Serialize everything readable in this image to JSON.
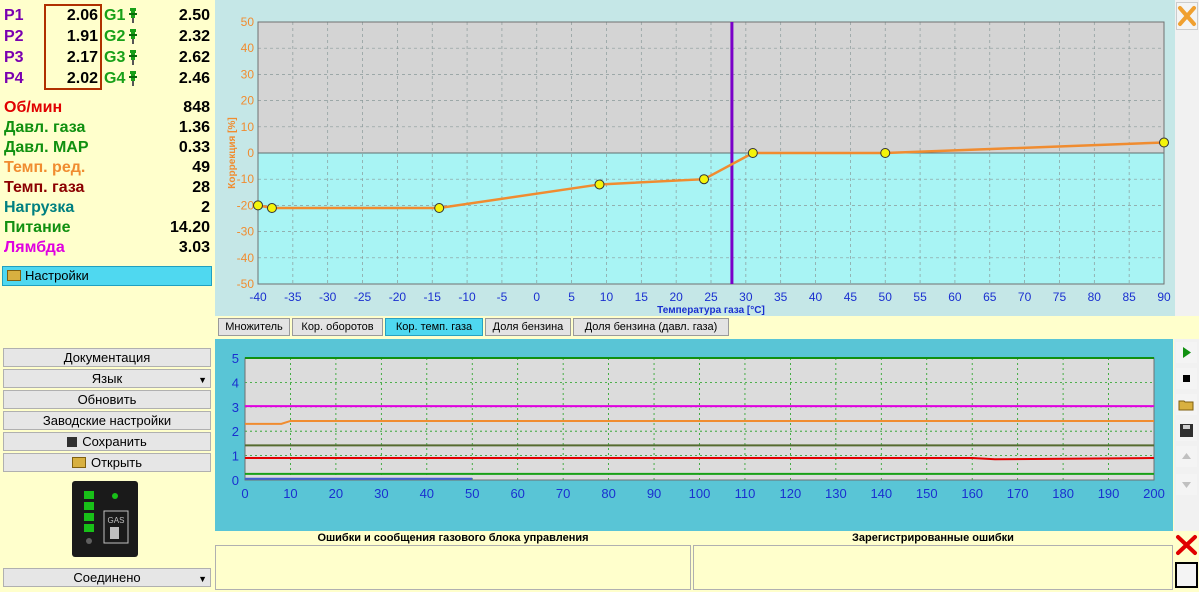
{
  "injectors": [
    {
      "p_label": "P1",
      "p_value": "2.06",
      "g_label": "G1",
      "g_value": "2.50"
    },
    {
      "p_label": "P2",
      "p_value": "1.91",
      "g_label": "G2",
      "g_value": "2.32"
    },
    {
      "p_label": "P3",
      "p_value": "2.17",
      "g_label": "G3",
      "g_value": "2.62"
    },
    {
      "p_label": "P4",
      "p_value": "2.02",
      "g_label": "G4",
      "g_value": "2.46"
    }
  ],
  "stats": [
    {
      "label": "Об/мин",
      "value": "848",
      "color": "#e00000"
    },
    {
      "label": "Давл. газа",
      "value": "1.36",
      "color": "#109010"
    },
    {
      "label": "Давл. MAP",
      "value": "0.33",
      "color": "#109010"
    },
    {
      "label": "Темп. ред.",
      "value": "49",
      "color": "#f08c30"
    },
    {
      "label": "Темп. газа",
      "value": "28",
      "color": "#8b0000"
    },
    {
      "label": "Нагрузка",
      "value": "2",
      "color": "#008080"
    },
    {
      "label": "Питание",
      "value": "14.20",
      "color": "#109010"
    },
    {
      "label": "Лямбда",
      "value": "3.03",
      "color": "#e000e0"
    }
  ],
  "settings_label": "Настройки",
  "buttons": {
    "documentation": "Документация",
    "language": "Язык",
    "refresh": "Обновить",
    "factory": "Заводские настройки",
    "save": "Сохранить",
    "open": "Открыть"
  },
  "connection_status": "Соединено",
  "gas_label": "GAS",
  "tabs": [
    {
      "label": "Множитель",
      "active": false
    },
    {
      "label": "Кор. оборотов",
      "active": false
    },
    {
      "label": "Кор. темп. газа",
      "active": true
    },
    {
      "label": "Доля бензина",
      "active": false
    },
    {
      "label": "Доля бензина (давл. газа)",
      "active": false
    }
  ],
  "errors_title": "Ошибки и сообщения газового блока управления",
  "registered_errors_title": "Зарегистрированные ошибки",
  "chart_data": [
    {
      "type": "line",
      "xlabel": "Температура газа [°C]",
      "ylabel": "Коррекция [%]",
      "xlim": [
        -40,
        90
      ],
      "ylim": [
        -50,
        50
      ],
      "x_ticks": [
        -40,
        -35,
        -30,
        -25,
        -20,
        -15,
        -10,
        -5,
        0,
        5,
        10,
        15,
        20,
        25,
        30,
        35,
        40,
        45,
        50,
        55,
        60,
        65,
        70,
        75,
        80,
        85,
        90
      ],
      "y_ticks": [
        50,
        40,
        30,
        20,
        10,
        0,
        -10,
        -20,
        -30,
        -40,
        -50
      ],
      "series": [
        {
          "x": [
            -40,
            -38,
            -14,
            9,
            24,
            31,
            50,
            90
          ],
          "y": [
            -20,
            -21,
            -21,
            -12,
            -10,
            0,
            0,
            4
          ]
        }
      ],
      "cursor_x": 28,
      "line_color": "#f08c30",
      "cursor_color": "#7a00c8"
    },
    {
      "type": "line",
      "xlim": [
        0,
        200
      ],
      "ylim": [
        0,
        5
      ],
      "x_ticks": [
        0,
        10,
        20,
        30,
        40,
        50,
        60,
        70,
        80,
        90,
        100,
        110,
        120,
        130,
        140,
        150,
        160,
        170,
        180,
        190,
        200
      ],
      "y_ticks": [
        5,
        4,
        3,
        2,
        1,
        0
      ],
      "series": [
        {
          "color": "#109010",
          "x": [
            0,
            200
          ],
          "y": [
            5,
            5
          ]
        },
        {
          "color": "#e000e0",
          "x": [
            0,
            200
          ],
          "y": [
            3.03,
            3.03
          ]
        },
        {
          "color": "#f08c30",
          "x": [
            0,
            8,
            10,
            200
          ],
          "y": [
            2.3,
            2.3,
            2.42,
            2.42
          ]
        },
        {
          "color": "#556b2f",
          "x": [
            0,
            200
          ],
          "y": [
            1.42,
            1.42
          ]
        },
        {
          "color": "#e00000",
          "x": [
            0,
            160,
            165,
            200
          ],
          "y": [
            0.9,
            0.9,
            0.85,
            0.9
          ]
        },
        {
          "color": "#18a018",
          "x": [
            0,
            200
          ],
          "y": [
            0.25,
            0.25
          ]
        },
        {
          "color": "#4060d0",
          "x": [
            0,
            50
          ],
          "y": [
            0.05,
            0.05
          ]
        }
      ]
    }
  ]
}
